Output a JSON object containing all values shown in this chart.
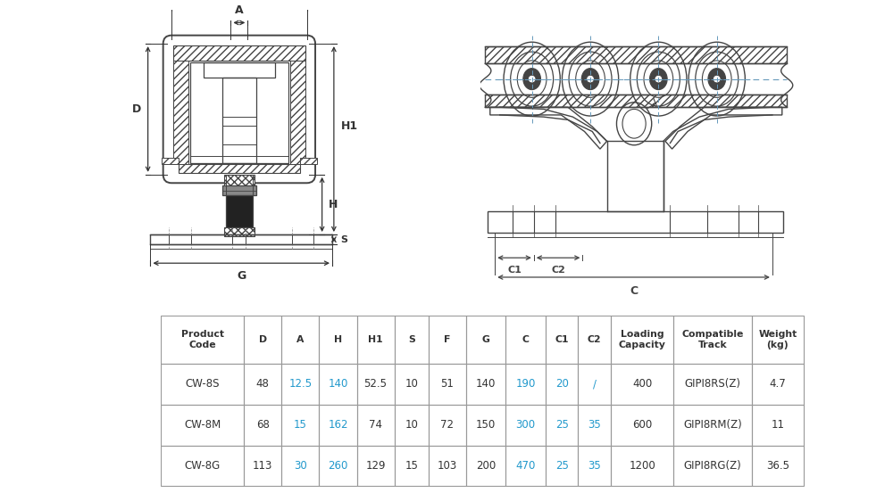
{
  "bg_color": "#ffffff",
  "lc": "#444444",
  "rc": "#444444",
  "cyan_color": "#2299cc",
  "table_rows": [
    [
      "CW-8S",
      "48",
      "12.5",
      "140",
      "52.5",
      "10",
      "51",
      "140",
      "190",
      "20",
      "/",
      "400",
      "GIPI8RS(Z)",
      "4.7"
    ],
    [
      "CW-8M",
      "68",
      "15",
      "162",
      "74",
      "10",
      "72",
      "150",
      "300",
      "25",
      "35",
      "600",
      "GIPI8RM(Z)",
      "11"
    ],
    [
      "CW-8G",
      "113",
      "30",
      "260",
      "129",
      "15",
      "103",
      "200",
      "470",
      "25",
      "35",
      "1200",
      "GIPI8RG(Z)",
      "36.5"
    ]
  ],
  "cyan_cols": [
    2,
    3,
    8,
    9,
    10
  ],
  "headers": [
    "Product\nCode",
    "D",
    "A",
    "H",
    "H1",
    "S",
    "F",
    "G",
    "C",
    "C1",
    "C2",
    "Loading\nCapacity",
    "Compatible\nTrack",
    "Weight\n(kg)"
  ]
}
